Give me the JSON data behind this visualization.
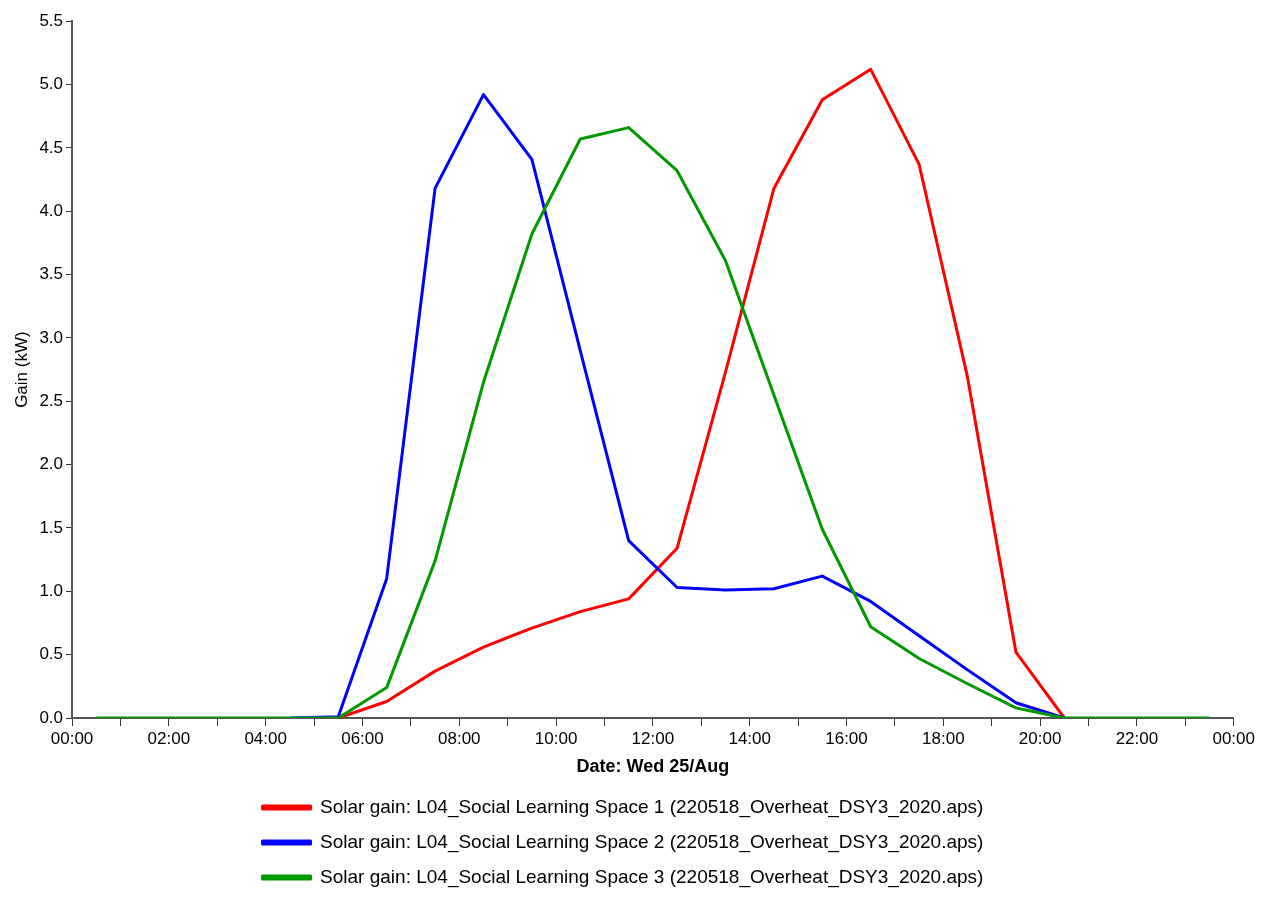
{
  "chart_data": {
    "type": "line",
    "xlabel": "Date: Wed 25/Aug",
    "ylabel": "Gain (kW)",
    "x": [
      0.5,
      1.5,
      2.5,
      3.5,
      4.5,
      5.5,
      6.5,
      7.5,
      8.5,
      9.5,
      10.5,
      11.5,
      12.5,
      13.5,
      14.5,
      15.5,
      16.5,
      17.5,
      18.5,
      19.5,
      20.5,
      21.5,
      22.5,
      23.5
    ],
    "series": [
      {
        "name": "Solar gain: L04_Social Learning Space 1 (220518_Overheat_DSY3_2020.aps)",
        "color": "#ff0000",
        "values": [
          null,
          null,
          null,
          null,
          null,
          0,
          0.13,
          0.37,
          0.56,
          0.71,
          0.84,
          0.94,
          1.34,
          2.73,
          4.18,
          4.88,
          5.12,
          4.37,
          2.69,
          0.52,
          0,
          null,
          null,
          null
        ]
      },
      {
        "name": "Solar gain: L04_Social Learning Space 2 (220518_Overheat_DSY3_2020.aps)",
        "color": "#0000ff",
        "values": [
          null,
          null,
          null,
          null,
          0,
          0.01,
          1.1,
          4.18,
          4.92,
          4.41,
          2.9,
          1.4,
          1.03,
          1.01,
          1.02,
          1.12,
          0.92,
          0.65,
          0.38,
          0.12,
          0,
          null,
          null,
          null
        ]
      },
      {
        "name": "Solar gain: L04_Social Learning Space 3 (220518_Overheat_DSY3_2020.aps)",
        "color": "#009900",
        "values": [
          0,
          0,
          0,
          0,
          0,
          0,
          0.24,
          1.24,
          2.65,
          3.82,
          4.57,
          4.66,
          4.32,
          3.61,
          2.55,
          1.49,
          0.72,
          0.47,
          0.27,
          0.08,
          0,
          0,
          0,
          0
        ]
      }
    ],
    "xlim": [
      0,
      24
    ],
    "xticks": [
      {
        "value": 0,
        "label": "00:00"
      },
      {
        "value": 1,
        "label": null
      },
      {
        "value": 2,
        "label": "02:00"
      },
      {
        "value": 3,
        "label": null
      },
      {
        "value": 4,
        "label": "04:00"
      },
      {
        "value": 5,
        "label": null
      },
      {
        "value": 6,
        "label": "06:00"
      },
      {
        "value": 7,
        "label": null
      },
      {
        "value": 8,
        "label": "08:00"
      },
      {
        "value": 9,
        "label": null
      },
      {
        "value": 10,
        "label": "10:00"
      },
      {
        "value": 11,
        "label": null
      },
      {
        "value": 12,
        "label": "12:00"
      },
      {
        "value": 13,
        "label": null
      },
      {
        "value": 14,
        "label": "14:00"
      },
      {
        "value": 15,
        "label": null
      },
      {
        "value": 16,
        "label": "16:00"
      },
      {
        "value": 17,
        "label": null
      },
      {
        "value": 18,
        "label": "18:00"
      },
      {
        "value": 19,
        "label": null
      },
      {
        "value": 20,
        "label": "20:00"
      },
      {
        "value": 21,
        "label": null
      },
      {
        "value": 22,
        "label": "22:00"
      },
      {
        "value": 23,
        "label": null
      },
      {
        "value": 24,
        "label": "00:00"
      }
    ],
    "ylim": [
      0,
      5.5
    ],
    "yticks": [
      {
        "value": 0,
        "label": "0.0"
      },
      {
        "value": 0.5,
        "label": "0.5"
      },
      {
        "value": 1,
        "label": "1.0"
      },
      {
        "value": 1.5,
        "label": "1.5"
      },
      {
        "value": 2,
        "label": "2.0"
      },
      {
        "value": 2.5,
        "label": "2.5"
      },
      {
        "value": 3,
        "label": "3.0"
      },
      {
        "value": 3.5,
        "label": "3.5"
      },
      {
        "value": 4,
        "label": "4.0"
      },
      {
        "value": 4.5,
        "label": "4.5"
      },
      {
        "value": 5,
        "label": "5.0"
      },
      {
        "value": 5.5,
        "label": "5.5"
      }
    ],
    "grid": false,
    "legend": "bottom",
    "marker": "none",
    "line_style": "solid"
  }
}
